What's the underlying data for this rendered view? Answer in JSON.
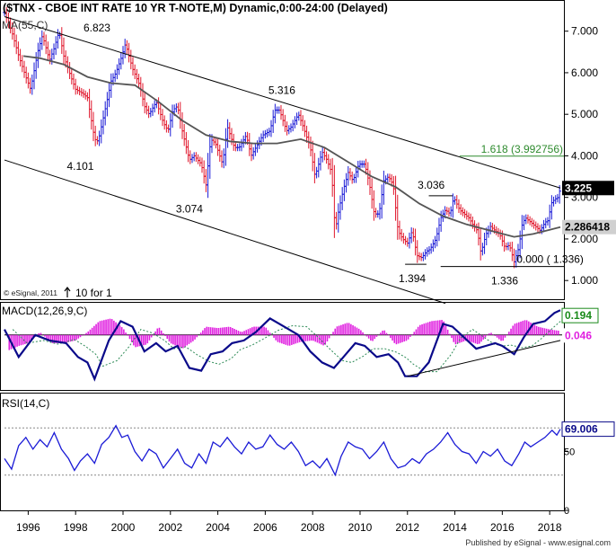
{
  "chart_data": {
    "type": "ohlc",
    "title": "($TNX - CBOE INT RATE 10 YR T-NOTE,M) Dynamic,0:00-24:00 (Delayed)",
    "indicator_labels": {
      "ma": "MA(55,C)",
      "macd": "MACD(12,26,9,C)",
      "rsi": "RSI(14,C)"
    },
    "price_axis": {
      "ticks": [
        "7.000",
        "6.000",
        "5.000",
        "4.000",
        "3.000",
        "2.000",
        "1.000"
      ],
      "ylim": [
        0.55,
        7.75
      ]
    },
    "rsi_axis": {
      "ticks": [
        "50",
        "0"
      ],
      "ylim": [
        0,
        100
      ]
    },
    "x_axis": {
      "ticks": [
        "1996",
        "1998",
        "2000",
        "2002",
        "2004",
        "2006",
        "2008",
        "2010",
        "2012",
        "2014",
        "2016",
        "2018"
      ],
      "xlim": [
        1995.0,
        2018.6
      ]
    },
    "price_annotations": [
      {
        "text": "6.823",
        "x": 1998.9,
        "y": 6.82
      },
      {
        "text": "5.316",
        "x": 2006.7,
        "y": 5.32
      },
      {
        "text": "4.101",
        "x": 1998.2,
        "y": 4.1
      },
      {
        "text": "3.074",
        "x": 2002.8,
        "y": 3.07
      },
      {
        "text": "3.036",
        "x": 2013.0,
        "y": 3.04
      },
      {
        "text": "1.394",
        "x": 2012.2,
        "y": 1.39
      },
      {
        "text": "1.336",
        "x": 2016.1,
        "y": 1.34
      },
      {
        "text": "0.000 ( 1.336)",
        "x": 2016.6,
        "y": 1.336
      },
      {
        "text": "1.618 (3.992756)",
        "x": 2015.1,
        "y": 3.99
      }
    ],
    "last_values": {
      "price": "3.225",
      "ma": "2.286418",
      "macd": "0.194",
      "signal": "0.046",
      "rsi": "69.006"
    },
    "notes": {
      "esignal": "© eSignal, 2011",
      "split": "10 for 1"
    },
    "colors": {
      "up": "#1a1ad6",
      "down": "#e0162b",
      "ma": "#555555",
      "macd": "#0a0a8a",
      "hist": "#e020e0",
      "rsi": "#1a1ad6",
      "fib": "#2e8b2e",
      "channel": "#000000"
    },
    "price_path": [
      [
        1995.0,
        7.45
      ],
      [
        1995.3,
        7.0
      ],
      [
        1995.6,
        6.4
      ],
      [
        1995.9,
        5.9
      ],
      [
        1996.1,
        5.6
      ],
      [
        1996.4,
        6.5
      ],
      [
        1996.6,
        6.9
      ],
      [
        1996.9,
        6.3
      ],
      [
        1997.1,
        6.6
      ],
      [
        1997.3,
        7.0
      ],
      [
        1997.5,
        6.4
      ],
      [
        1997.8,
        5.9
      ],
      [
        1998.0,
        5.6
      ],
      [
        1998.3,
        5.5
      ],
      [
        1998.5,
        5.4
      ],
      [
        1998.8,
        4.4
      ],
      [
        1998.95,
        4.35
      ],
      [
        1999.2,
        5.0
      ],
      [
        1999.5,
        5.8
      ],
      [
        1999.7,
        6.0
      ],
      [
        1999.95,
        6.4
      ],
      [
        2000.1,
        6.7
      ],
      [
        2000.4,
        6.1
      ],
      [
        2000.7,
        5.7
      ],
      [
        2000.9,
        5.2
      ],
      [
        2001.1,
        5.0
      ],
      [
        2001.4,
        5.3
      ],
      [
        2001.7,
        4.8
      ],
      [
        2001.9,
        4.6
      ],
      [
        2002.1,
        5.1
      ],
      [
        2002.3,
        5.2
      ],
      [
        2002.5,
        4.6
      ],
      [
        2002.8,
        3.9
      ],
      [
        2003.0,
        4.0
      ],
      [
        2003.3,
        3.8
      ],
      [
        2003.5,
        3.3
      ],
      [
        2003.7,
        4.4
      ],
      [
        2003.9,
        4.3
      ],
      [
        2004.2,
        3.8
      ],
      [
        2004.4,
        4.7
      ],
      [
        2004.7,
        4.2
      ],
      [
        2004.9,
        4.2
      ],
      [
        2005.2,
        4.5
      ],
      [
        2005.4,
        4.0
      ],
      [
        2005.7,
        4.3
      ],
      [
        2005.9,
        4.5
      ],
      [
        2006.2,
        4.6
      ],
      [
        2006.4,
        5.1
      ],
      [
        2006.6,
        5.1
      ],
      [
        2006.9,
        4.6
      ],
      [
        2007.1,
        4.7
      ],
      [
        2007.4,
        5.0
      ],
      [
        2007.6,
        4.7
      ],
      [
        2007.9,
        4.2
      ],
      [
        2008.1,
        3.5
      ],
      [
        2008.4,
        4.1
      ],
      [
        2008.6,
        3.9
      ],
      [
        2008.8,
        3.6
      ],
      [
        2008.95,
        2.2
      ],
      [
        2009.1,
        2.7
      ],
      [
        2009.3,
        3.2
      ],
      [
        2009.5,
        3.6
      ],
      [
        2009.7,
        3.4
      ],
      [
        2009.95,
        3.8
      ],
      [
        2010.2,
        3.8
      ],
      [
        2010.4,
        3.3
      ],
      [
        2010.6,
        2.6
      ],
      [
        2010.8,
        2.6
      ],
      [
        2011.0,
        3.4
      ],
      [
        2011.2,
        3.5
      ],
      [
        2011.4,
        3.3
      ],
      [
        2011.6,
        2.2
      ],
      [
        2011.8,
        2.0
      ],
      [
        2012.0,
        1.9
      ],
      [
        2012.2,
        2.2
      ],
      [
        2012.4,
        1.6
      ],
      [
        2012.6,
        1.55
      ],
      [
        2012.8,
        1.7
      ],
      [
        2012.95,
        1.75
      ],
      [
        2013.2,
        2.0
      ],
      [
        2013.4,
        2.5
      ],
      [
        2013.6,
        2.7
      ],
      [
        2013.8,
        2.6
      ],
      [
        2013.95,
        3.0
      ],
      [
        2014.2,
        2.7
      ],
      [
        2014.4,
        2.6
      ],
      [
        2014.6,
        2.5
      ],
      [
        2014.8,
        2.3
      ],
      [
        2014.95,
        2.2
      ],
      [
        2015.1,
        1.65
      ],
      [
        2015.3,
        2.1
      ],
      [
        2015.5,
        2.3
      ],
      [
        2015.7,
        2.2
      ],
      [
        2015.9,
        2.1
      ],
      [
        2016.1,
        1.8
      ],
      [
        2016.3,
        1.85
      ],
      [
        2016.5,
        1.45
      ],
      [
        2016.7,
        1.8
      ],
      [
        2016.85,
        2.4
      ],
      [
        2017.0,
        2.5
      ],
      [
        2017.2,
        2.4
      ],
      [
        2017.4,
        2.3
      ],
      [
        2017.6,
        2.2
      ],
      [
        2017.8,
        2.4
      ],
      [
        2017.95,
        2.45
      ],
      [
        2018.05,
        2.85
      ],
      [
        2018.2,
        2.95
      ],
      [
        2018.35,
        3.0
      ],
      [
        2018.45,
        3.225
      ]
    ],
    "ma_path": [
      [
        1995.8,
        6.4
      ],
      [
        1996.5,
        6.35
      ],
      [
        1997.5,
        6.2
      ],
      [
        1998.5,
        5.9
      ],
      [
        1999.5,
        5.75
      ],
      [
        2000.5,
        5.7
      ],
      [
        2001.5,
        5.3
      ],
      [
        2002.5,
        4.85
      ],
      [
        2003.5,
        4.5
      ],
      [
        2004.5,
        4.35
      ],
      [
        2005.5,
        4.3
      ],
      [
        2006.5,
        4.3
      ],
      [
        2007.5,
        4.4
      ],
      [
        2008.5,
        4.2
      ],
      [
        2009.5,
        3.85
      ],
      [
        2010.5,
        3.5
      ],
      [
        2011.5,
        3.25
      ],
      [
        2012.5,
        2.85
      ],
      [
        2013.5,
        2.55
      ],
      [
        2014.5,
        2.35
      ],
      [
        2015.5,
        2.2
      ],
      [
        2016.5,
        2.05
      ],
      [
        2017.3,
        2.12
      ],
      [
        2018.0,
        2.22
      ],
      [
        2018.45,
        2.286
      ]
    ],
    "upper_channel": [
      [
        1995.0,
        7.35
      ],
      [
        2018.45,
        3.225
      ]
    ],
    "lower_channel": [
      [
        1995.0,
        3.9
      ],
      [
        2013.6,
        0.45
      ]
    ],
    "support_line": [
      [
        2013.4,
        1.336
      ],
      [
        2018.6,
        1.336
      ]
    ],
    "fib_line": [
      [
        2014.2,
        3.993
      ],
      [
        2018.6,
        3.993
      ]
    ],
    "high_1_line": [
      [
        2012.9,
        3.04
      ],
      [
        2013.9,
        3.04
      ]
    ],
    "low_1_line": [
      [
        2011.9,
        1.39
      ],
      [
        2012.8,
        1.39
      ]
    ],
    "macd_ylim": [
      -2.0,
      1.2
    ],
    "macd_path": [
      [
        1995.0,
        0.2
      ],
      [
        1995.6,
        -0.8
      ],
      [
        1996.3,
        0.0
      ],
      [
        1996.9,
        -0.2
      ],
      [
        1997.6,
        -0.3
      ],
      [
        1998.1,
        -0.8
      ],
      [
        1998.5,
        -1.0
      ],
      [
        1998.8,
        -1.6
      ],
      [
        1999.4,
        -0.2
      ],
      [
        1999.9,
        0.5
      ],
      [
        2000.4,
        0.3
      ],
      [
        2000.9,
        -0.6
      ],
      [
        2001.4,
        -0.3
      ],
      [
        2001.8,
        -0.6
      ],
      [
        2002.3,
        -0.4
      ],
      [
        2002.8,
        -1.2
      ],
      [
        2003.3,
        -1.3
      ],
      [
        2003.7,
        -0.7
      ],
      [
        2004.2,
        -0.6
      ],
      [
        2004.6,
        -0.3
      ],
      [
        2005.1,
        -0.2
      ],
      [
        2005.6,
        0.1
      ],
      [
        2006.2,
        0.6
      ],
      [
        2006.8,
        0.3
      ],
      [
        2007.4,
        0.0
      ],
      [
        2007.9,
        -0.6
      ],
      [
        2008.4,
        -1.0
      ],
      [
        2008.9,
        -1.2
      ],
      [
        2009.3,
        -0.8
      ],
      [
        2009.8,
        -0.3
      ],
      [
        2010.2,
        -0.4
      ],
      [
        2010.7,
        -0.8
      ],
      [
        2011.2,
        -0.7
      ],
      [
        2011.6,
        -1.0
      ],
      [
        2011.9,
        -1.5
      ],
      [
        2012.4,
        -1.5
      ],
      [
        2012.9,
        -1.0
      ],
      [
        2013.5,
        0.4
      ],
      [
        2013.9,
        0.3
      ],
      [
        2014.4,
        -0.1
      ],
      [
        2014.9,
        -0.5
      ],
      [
        2015.3,
        -0.4
      ],
      [
        2015.7,
        -0.3
      ],
      [
        2016.0,
        -0.4
      ],
      [
        2016.5,
        -0.7
      ],
      [
        2016.9,
        -0.1
      ],
      [
        2017.3,
        0.4
      ],
      [
        2017.8,
        0.5
      ],
      [
        2018.2,
        0.8
      ],
      [
        2018.45,
        0.9
      ]
    ],
    "macd_hist": [
      [
        1995.2,
        -0.55
      ],
      [
        1995.6,
        -0.4
      ],
      [
        1996.0,
        -0.3
      ],
      [
        1996.5,
        0.1
      ],
      [
        1997.0,
        -0.3
      ],
      [
        1997.5,
        -0.3
      ],
      [
        1998.0,
        -0.2
      ],
      [
        1998.5,
        0.1
      ],
      [
        1999.0,
        0.5
      ],
      [
        1999.5,
        0.6
      ],
      [
        2000.0,
        0.25
      ],
      [
        2000.5,
        -0.45
      ],
      [
        2001.0,
        -0.35
      ],
      [
        2001.5,
        0.3
      ],
      [
        2002.0,
        -0.3
      ],
      [
        2002.5,
        -0.5
      ],
      [
        2003.0,
        -0.2
      ],
      [
        2003.5,
        0.3
      ],
      [
        2004.0,
        0.25
      ],
      [
        2004.5,
        0.3
      ],
      [
        2005.0,
        0.1
      ],
      [
        2005.5,
        0.3
      ],
      [
        2006.0,
        0.3
      ],
      [
        2006.5,
        -0.25
      ],
      [
        2007.0,
        -0.4
      ],
      [
        2007.5,
        -0.25
      ],
      [
        2008.0,
        -0.2
      ],
      [
        2008.5,
        -0.4
      ],
      [
        2009.0,
        0.3
      ],
      [
        2009.5,
        0.45
      ],
      [
        2010.0,
        0.2
      ],
      [
        2010.5,
        -0.25
      ],
      [
        2011.0,
        0.2
      ],
      [
        2011.5,
        -0.35
      ],
      [
        2012.0,
        -0.2
      ],
      [
        2012.5,
        0.35
      ],
      [
        2013.0,
        0.5
      ],
      [
        2013.5,
        0.55
      ],
      [
        2014.0,
        -0.35
      ],
      [
        2014.5,
        -0.2
      ],
      [
        2015.0,
        -0.35
      ],
      [
        2015.5,
        0.1
      ],
      [
        2016.0,
        -0.25
      ],
      [
        2016.5,
        0.4
      ],
      [
        2017.0,
        0.55
      ],
      [
        2017.5,
        0.3
      ],
      [
        2018.0,
        0.2
      ],
      [
        2018.4,
        0.15
      ]
    ],
    "macd_trend": [
      [
        2012.0,
        -1.5
      ],
      [
        2018.45,
        -0.2
      ]
    ],
    "rsi_path": [
      [
        1995.0,
        44
      ],
      [
        1995.3,
        35
      ],
      [
        1995.6,
        55
      ],
      [
        1995.9,
        62
      ],
      [
        1996.2,
        52
      ],
      [
        1996.5,
        60
      ],
      [
        1996.8,
        54
      ],
      [
        1997.1,
        66
      ],
      [
        1997.4,
        52
      ],
      [
        1997.7,
        44
      ],
      [
        1997.95,
        34
      ],
      [
        1998.2,
        42
      ],
      [
        1998.5,
        48
      ],
      [
        1998.8,
        40
      ],
      [
        1999.1,
        56
      ],
      [
        1999.4,
        62
      ],
      [
        1999.7,
        72
      ],
      [
        1999.95,
        62
      ],
      [
        2000.2,
        64
      ],
      [
        2000.5,
        50
      ],
      [
        2000.8,
        42
      ],
      [
        2001.1,
        52
      ],
      [
        2001.4,
        48
      ],
      [
        2001.7,
        36
      ],
      [
        2002.0,
        44
      ],
      [
        2002.3,
        52
      ],
      [
        2002.6,
        40
      ],
      [
        2002.9,
        36
      ],
      [
        2003.2,
        48
      ],
      [
        2003.5,
        40
      ],
      [
        2003.8,
        58
      ],
      [
        2004.1,
        54
      ],
      [
        2004.4,
        62
      ],
      [
        2004.7,
        54
      ],
      [
        2005.0,
        48
      ],
      [
        2005.3,
        58
      ],
      [
        2005.6,
        52
      ],
      [
        2005.9,
        54
      ],
      [
        2006.2,
        64
      ],
      [
        2006.5,
        56
      ],
      [
        2006.8,
        52
      ],
      [
        2007.1,
        58
      ],
      [
        2007.4,
        50
      ],
      [
        2007.7,
        38
      ],
      [
        2008.0,
        42
      ],
      [
        2008.3,
        36
      ],
      [
        2008.6,
        44
      ],
      [
        2008.95,
        30
      ],
      [
        2009.2,
        46
      ],
      [
        2009.5,
        58
      ],
      [
        2009.8,
        54
      ],
      [
        2010.1,
        52
      ],
      [
        2010.4,
        44
      ],
      [
        2010.7,
        50
      ],
      [
        2011.0,
        58
      ],
      [
        2011.3,
        44
      ],
      [
        2011.6,
        36
      ],
      [
        2011.9,
        38
      ],
      [
        2012.2,
        44
      ],
      [
        2012.5,
        40
      ],
      [
        2012.8,
        48
      ],
      [
        2013.1,
        52
      ],
      [
        2013.4,
        58
      ],
      [
        2013.7,
        66
      ],
      [
        2014.0,
        56
      ],
      [
        2014.3,
        50
      ],
      [
        2014.6,
        48
      ],
      [
        2014.9,
        40
      ],
      [
        2015.2,
        50
      ],
      [
        2015.5,
        46
      ],
      [
        2015.8,
        52
      ],
      [
        2016.1,
        42
      ],
      [
        2016.4,
        38
      ],
      [
        2016.7,
        48
      ],
      [
        2016.95,
        58
      ],
      [
        2017.2,
        54
      ],
      [
        2017.5,
        58
      ],
      [
        2017.8,
        62
      ],
      [
        2018.1,
        68
      ],
      [
        2018.3,
        64
      ],
      [
        2018.45,
        69
      ]
    ]
  }
}
